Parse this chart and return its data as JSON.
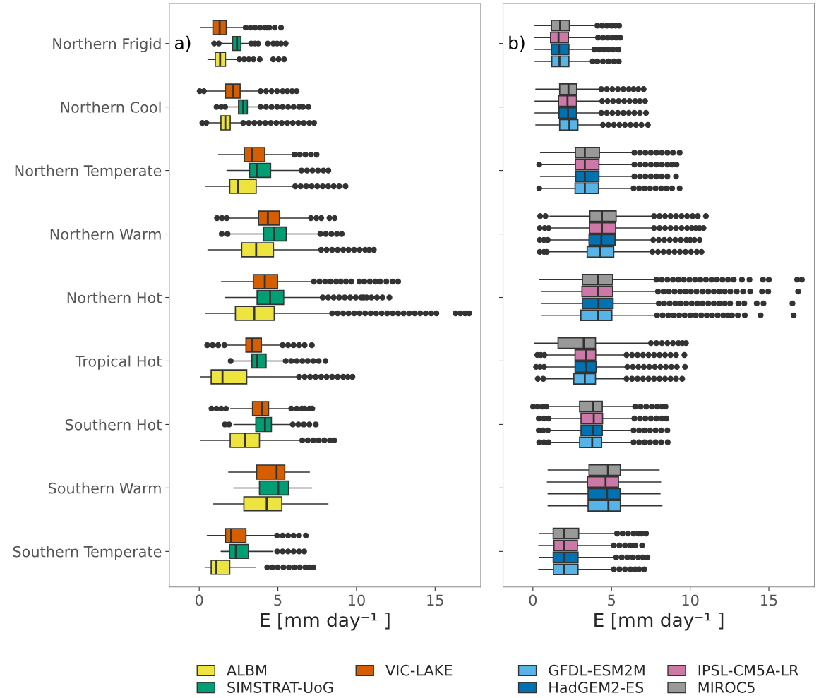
{
  "chart_data": [
    {
      "type": "box",
      "orientation": "horizontal",
      "annotations": [
        "a)"
      ],
      "xlabel": "E [mm day⁻¹ ]",
      "xlim": [
        -1.9,
        17.9
      ],
      "xticks": [
        0,
        5,
        10,
        15
      ],
      "legend": "bottom",
      "categories": [
        "Northern Frigid",
        "Northern Cool",
        "Northern Temperate",
        "Northern Warm",
        "Northern Hot",
        "Tropical Hot",
        "Southern Hot",
        "Southern Warm",
        "Southern Temperate"
      ],
      "series": [
        {
          "name": "ALBM",
          "color": "#ede440",
          "boxes": [
            {
              "low": 0.55,
              "q1": 1.02,
              "median": 1.33,
              "q3": 1.67,
              "high": 2.52,
              "outliers": [
                2.55,
                2.85,
                3.15,
                3.45,
                3.85,
                4.7,
                5.05,
                5.4
              ]
            },
            {
              "low": 0.6,
              "q1": 1.38,
              "median": 1.66,
              "q3": 1.97,
              "high": 2.75,
              "outliers": [
                0.2,
                0.45,
                2.8,
                3.15,
                3.5,
                3.85,
                4.2,
                4.55,
                4.9,
                5.25,
                5.6,
                5.95,
                6.3,
                6.65,
                7.0,
                7.3
              ]
            },
            {
              "low": 0.4,
              "q1": 1.94,
              "median": 2.47,
              "q3": 3.62,
              "high": 6.07,
              "outliers": [
                6.1,
                6.45,
                6.8,
                7.15,
                7.5,
                7.85,
                8.2,
                8.55,
                8.9,
                9.3
              ]
            },
            {
              "low": 0.55,
              "q1": 2.7,
              "median": 3.62,
              "q3": 4.72,
              "high": 7.73,
              "outliers": [
                7.75,
                8.1,
                8.45,
                8.8,
                9.15,
                9.5,
                9.85,
                10.2,
                10.55,
                10.8,
                11.1
              ]
            },
            {
              "low": 0.39,
              "q1": 2.3,
              "median": 3.5,
              "q3": 4.77,
              "high": 8.43,
              "outliers": [
                8.45,
                8.8,
                9.15,
                9.5,
                9.85,
                10.2,
                10.55,
                10.9,
                11.25,
                11.6,
                11.95,
                12.3,
                12.65,
                13.0,
                13.35,
                13.7,
                14.05,
                14.4,
                14.75,
                15.08,
                16.3,
                16.6,
                16.9,
                17.17
              ]
            },
            {
              "low": 0.09,
              "q1": 0.76,
              "median": 1.48,
              "q3": 3.02,
              "high": 6.31,
              "outliers": [
                6.35,
                6.7,
                7.05,
                7.4,
                7.75,
                8.1,
                8.45,
                8.8,
                9.15,
                9.45,
                9.74
              ]
            },
            {
              "low": 0.1,
              "q1": 1.97,
              "median": 2.9,
              "q3": 3.83,
              "high": 6.53,
              "outliers": [
                6.55,
                6.9,
                7.25,
                7.6,
                7.95,
                8.3,
                8.58
              ]
            },
            {
              "low": 0.9,
              "q1": 2.84,
              "median": 4.29,
              "q3": 5.25,
              "high": 8.19
            },
            {
              "low": 0.36,
              "q1": 0.76,
              "median": 1.06,
              "q3": 1.94,
              "high": 3.6,
              "outliers": [
                4.32,
                4.65,
                5.0,
                5.35,
                5.7,
                6.05,
                6.4,
                6.75,
                7.0,
                7.26
              ]
            }
          ]
        },
        {
          "name": "SIMSTRAT-UoG",
          "color": "#009e73",
          "boxes": [
            {
              "low": 1.48,
              "q1": 2.12,
              "median": 2.4,
              "q3": 2.65,
              "high": 3.27,
              "outliers": [
                0.95,
                1.25,
                3.3,
                3.55,
                3.75,
                4.36,
                4.7,
                4.95,
                5.2,
                5.5
              ]
            },
            {
              "low": 1.75,
              "q1": 2.5,
              "median": 2.8,
              "q3": 3.06,
              "high": 3.85,
              "outliers": [
                1.1,
                1.4,
                1.65,
                3.9,
                4.25,
                4.6,
                4.95,
                5.3,
                5.65,
                6.0,
                6.35,
                6.6,
                6.94
              ]
            },
            {
              "low": 1.76,
              "q1": 3.2,
              "median": 3.65,
              "q3": 4.54,
              "high": 6.49,
              "outliers": [
                6.5,
                6.85,
                7.2,
                7.55,
                7.9,
                8.21
              ]
            },
            {
              "low": 1.9,
              "q1": 4.09,
              "median": 4.74,
              "q3": 5.53,
              "high": 7.68,
              "outliers": [
                1.43,
                1.8,
                7.7,
                8.05,
                8.4,
                8.75,
                9.06
              ]
            },
            {
              "low": 1.66,
              "q1": 3.68,
              "median": 4.5,
              "q3": 5.37,
              "high": 7.83,
              "outliers": [
                7.85,
                8.2,
                8.55,
                8.9,
                9.25,
                9.6,
                9.95,
                10.3,
                10.45,
                10.64,
                10.95,
                11.3,
                11.65,
                12.09
              ]
            },
            {
              "low": 2.15,
              "q1": 3.35,
              "median": 3.69,
              "q3": 4.25,
              "high": 5.44,
              "outliers": [
                2.0,
                5.5,
                5.85,
                6.2,
                6.55,
                6.9,
                7.25,
                7.6,
                8.03
              ]
            },
            {
              "low": 2.2,
              "q1": 3.6,
              "median": 4.18,
              "q3": 4.59,
              "high": 5.93,
              "outliers": [
                1.63,
                1.9,
                5.95,
                6.3,
                6.65,
                7.0,
                7.41
              ]
            },
            {
              "low": 2.18,
              "q1": 3.83,
              "median": 5.02,
              "q3": 5.68,
              "high": 7.17
            },
            {
              "low": 1.39,
              "q1": 1.93,
              "median": 2.33,
              "q3": 3.13,
              "high": 4.69,
              "outliers": [
                4.96,
                5.3,
                5.65,
                6.0,
                6.35,
                6.67
              ]
            }
          ]
        },
        {
          "name": "VIC-LAKE",
          "color": "#d55e00",
          "boxes": [
            {
              "low": 0.09,
              "q1": 0.87,
              "median": 1.3,
              "q3": 1.72,
              "high": 2.9,
              "outliers": [
                2.95,
                3.25,
                3.55,
                3.85,
                4.15,
                4.3,
                4.45,
                4.8,
                5.2
              ]
            },
            {
              "low": 0.4,
              "q1": 1.67,
              "median": 2.17,
              "q3": 2.6,
              "high": 3.87,
              "outliers": [
                0.03,
                0.3,
                3.9,
                4.25,
                4.6,
                4.95,
                5.3,
                5.6,
                5.9,
                6.19
              ]
            },
            {
              "low": 1.23,
              "q1": 2.87,
              "median": 3.35,
              "q3": 4.17,
              "high": 6.0,
              "outliers": [
                6.05,
                6.4,
                6.75,
                7.1,
                7.46
              ]
            },
            {
              "low": 1.85,
              "q1": 3.77,
              "median": 4.36,
              "q3": 5.1,
              "high": 7.04,
              "outliers": [
                1.13,
                1.45,
                1.75,
                7.1,
                7.45,
                7.76,
                8.28,
                8.61
              ]
            },
            {
              "low": 1.41,
              "q1": 3.44,
              "median": 4.17,
              "q3": 4.98,
              "high": 7.26,
              "outliers": [
                7.3,
                7.65,
                8.0,
                8.35,
                8.7,
                9.0,
                9.33,
                9.67,
                10.19,
                10.5,
                10.85,
                11.2,
                11.5,
                11.9,
                12.3,
                12.65
              ]
            },
            {
              "low": 1.65,
              "q1": 2.97,
              "median": 3.35,
              "q3": 3.95,
              "high": 5.29,
              "outliers": [
                0.51,
                0.85,
                1.2,
                1.6,
                5.3,
                5.65,
                6.0,
                6.35,
                6.7,
                7.16
              ]
            },
            {
              "low": 2.0,
              "q1": 3.39,
              "median": 3.98,
              "q3": 4.41,
              "high": 5.84,
              "outliers": [
                0.78,
                1.1,
                1.4,
                1.7,
                5.85,
                6.2,
                6.52,
                6.71,
                7.0,
                7.19
              ]
            },
            {
              "low": 1.87,
              "q1": 3.65,
              "median": 4.92,
              "q3": 5.44,
              "high": 7.01
            },
            {
              "low": 0.51,
              "q1": 1.67,
              "median": 2.03,
              "q3": 2.97,
              "high": 4.92,
              "outliers": [
                4.95,
                5.3,
                5.65,
                6.0,
                6.35,
                6.78
              ]
            }
          ]
        }
      ]
    },
    {
      "type": "box",
      "orientation": "horizontal",
      "annotations": [
        "b)"
      ],
      "xlabel": "E [mm day⁻¹ ]",
      "xlim": [
        -1.9,
        17.9
      ],
      "xticks": [
        0,
        5,
        10,
        15
      ],
      "legend": "bottom",
      "tick_labels": "x",
      "series": [
        {
          "name": "GFDL-ESM2M",
          "color": "#56b4e9",
          "boxes": [
            {
              "low": 0.13,
              "q1": 1.2,
              "median": 1.69,
              "q3": 2.29,
              "high": 3.69,
              "outliers": [
                3.8,
                4.1,
                4.45,
                4.8,
                5.15,
                5.46
              ]
            },
            {
              "low": 0.18,
              "q1": 1.7,
              "median": 2.32,
              "q3": 2.86,
              "high": 4.43,
              "outliers": [
                4.45,
                4.8,
                5.15,
                5.5,
                5.85,
                6.2,
                6.55,
                6.9,
                7.31
              ]
            },
            {
              "low": 0.55,
              "q1": 2.68,
              "median": 3.3,
              "q3": 4.17,
              "high": 6.34,
              "outliers": [
                0.4,
                6.4,
                6.75,
                7.1,
                7.45,
                7.8,
                8.15,
                8.5,
                8.85,
                9.33
              ]
            },
            {
              "low": 1.0,
              "q1": 3.45,
              "median": 4.27,
              "q3": 5.14,
              "high": 7.58,
              "outliers": [
                0.43,
                0.7,
                0.88,
                7.6,
                7.95,
                8.3,
                8.65,
                9.0,
                9.35,
                9.7,
                10.05,
                10.42,
                10.72
              ]
            },
            {
              "low": 0.57,
              "q1": 3.05,
              "median": 4.14,
              "q3": 5.02,
              "high": 7.87,
              "outliers": [
                7.9,
                8.25,
                8.6,
                8.95,
                9.3,
                9.65,
                10.0,
                10.35,
                10.7,
                11.05,
                11.4,
                11.75,
                12.1,
                12.4,
                12.66,
                13.03,
                13.47,
                14.48,
                16.58
              ]
            },
            {
              "low": 0.8,
              "q1": 2.6,
              "median": 3.3,
              "q3": 3.98,
              "high": 5.92,
              "outliers": [
                0.31,
                0.66,
                5.95,
                6.3,
                6.65,
                7.0,
                7.35,
                7.7,
                8.05,
                8.4,
                8.75,
                9.1,
                9.49
              ]
            },
            {
              "low": 1.05,
              "q1": 2.97,
              "median": 3.77,
              "q3": 4.37,
              "high": 6.37,
              "outliers": [
                0.4,
                0.7,
                0.99,
                6.4,
                6.75,
                7.1,
                7.45,
                7.8,
                8.15,
                8.57
              ]
            },
            {
              "low": 0.96,
              "q1": 3.51,
              "median": 4.8,
              "q3": 5.56,
              "high": 8.21
            },
            {
              "low": 0.36,
              "q1": 1.3,
              "median": 2.0,
              "q3": 2.87,
              "high": 5.14,
              "outliers": [
                5.15,
                5.5,
                5.85,
                6.2,
                6.5,
                6.75,
                7.08
              ]
            }
          ]
        },
        {
          "name": "HadGEM2-ES",
          "color": "#0072b2",
          "boxes": [
            {
              "low": 0.13,
              "q1": 1.18,
              "median": 1.66,
              "q3": 2.29,
              "high": 3.87,
              "outliers": [
                3.9,
                4.2,
                4.5,
                4.8,
                5.1,
                5.44
              ]
            },
            {
              "low": 0.13,
              "q1": 1.66,
              "median": 2.23,
              "q3": 2.77,
              "high": 4.32,
              "outliers": [
                4.35,
                4.7,
                5.05,
                5.4,
                5.75,
                6.1,
                6.45,
                6.8,
                7.19
              ]
            },
            {
              "low": 0.48,
              "q1": 2.72,
              "median": 3.3,
              "q3": 4.2,
              "high": 6.41,
              "outliers": [
                6.45,
                6.8,
                7.15,
                7.5,
                7.85,
                8.2,
                8.55,
                9.1
              ]
            },
            {
              "low": 1.18,
              "q1": 3.57,
              "median": 4.35,
              "q3": 5.22,
              "high": 7.61,
              "outliers": [
                0.43,
                0.7,
                0.95,
                7.65,
                8.0,
                8.35,
                8.7,
                9.05,
                9.4,
                9.75,
                10.0,
                10.27,
                10.6
              ]
            },
            {
              "low": 0.57,
              "q1": 3.14,
              "median": 4.17,
              "q3": 5.1,
              "high": 7.98,
              "outliers": [
                8.0,
                8.35,
                8.7,
                9.05,
                9.4,
                9.75,
                10.1,
                10.45,
                10.8,
                11.15,
                11.5,
                11.85,
                12.2,
                12.54,
                13.06,
                13.44,
                14.23,
                14.66,
                16.5
              ]
            },
            {
              "low": 0.8,
              "q1": 2.68,
              "median": 3.39,
              "q3": 4.02,
              "high": 5.96,
              "outliers": [
                0.2,
                0.45,
                0.71,
                6.0,
                6.35,
                6.7,
                7.05,
                7.4,
                7.75,
                8.1,
                8.45,
                8.8,
                9.15,
                9.67
              ]
            },
            {
              "low": 1.1,
              "q1": 3.06,
              "median": 3.81,
              "q3": 4.41,
              "high": 6.37,
              "outliers": [
                0.37,
                0.65,
                0.95,
                6.4,
                6.75,
                7.1,
                7.45,
                7.8,
                8.15,
                8.55
              ]
            },
            {
              "low": 0.96,
              "q1": 3.51,
              "median": 4.71,
              "q3": 5.55,
              "high": 8.09
            },
            {
              "low": 0.4,
              "q1": 1.29,
              "median": 2.0,
              "q3": 2.87,
              "high": 5.25,
              "outliers": [
                5.3,
                5.65,
                6.0,
                6.35,
                6.7,
                7.0,
                7.28
              ]
            }
          ]
        },
        {
          "name": "IPSL-CM5A-LR",
          "color": "#cc79a7",
          "boxes": [
            {
              "low": 0.13,
              "q1": 1.12,
              "median": 1.63,
              "q3": 2.26,
              "high": 3.95,
              "outliers": [
                4.14,
                4.45,
                4.75,
                5.05,
                5.3,
                5.55
              ]
            },
            {
              "low": 0.13,
              "q1": 1.63,
              "median": 2.2,
              "q3": 2.77,
              "high": 4.36,
              "outliers": [
                4.4,
                4.75,
                5.1,
                5.45,
                5.8,
                6.15,
                6.5,
                6.8,
                7.13
              ]
            },
            {
              "low": 0.55,
              "q1": 2.7,
              "median": 3.3,
              "q3": 4.2,
              "high": 6.41,
              "outliers": [
                0.4,
                6.45,
                6.8,
                7.15,
                7.5,
                7.85,
                8.2,
                8.55,
                8.85,
                9.13
              ]
            },
            {
              "low": 1.2,
              "q1": 3.6,
              "median": 4.39,
              "q3": 5.26,
              "high": 7.64,
              "outliers": [
                0.43,
                0.75,
                1.0,
                7.7,
                8.05,
                8.4,
                8.75,
                9.1,
                9.45,
                9.8,
                10.1,
                10.35,
                10.6,
                10.85
              ]
            },
            {
              "low": 0.57,
              "q1": 3.12,
              "median": 4.14,
              "q3": 5.07,
              "high": 7.9,
              "outliers": [
                7.95,
                8.3,
                8.65,
                9.0,
                9.35,
                9.7,
                10.05,
                10.4,
                10.8,
                11.15,
                11.5,
                11.85,
                12.2,
                12.55,
                12.96,
                13.36,
                13.81,
                14.56,
                14.96,
                16.86
              ]
            },
            {
              "low": 0.8,
              "q1": 2.68,
              "median": 3.39,
              "q3": 3.99,
              "high": 5.92,
              "outliers": [
                0.28,
                0.5,
                0.73,
                5.95,
                6.3,
                6.65,
                7.0,
                7.35,
                7.7,
                8.05,
                8.4,
                8.75,
                9.1,
                9.63
              ]
            },
            {
              "low": 1.15,
              "q1": 3.06,
              "median": 3.87,
              "q3": 4.43,
              "high": 6.41,
              "outliers": [
                0.37,
                0.7,
                1.0,
                6.45,
                6.8,
                7.15,
                7.5,
                7.85,
                8.2,
                8.48
              ]
            },
            {
              "low": 0.91,
              "q1": 3.47,
              "median": 4.62,
              "q3": 5.44,
              "high": 8.13
            },
            {
              "low": 0.36,
              "q1": 1.34,
              "median": 1.97,
              "q3": 2.83,
              "high": 5.11,
              "outliers": [
                5.15,
                5.5,
                5.85,
                6.2,
                6.5,
                6.94
              ]
            }
          ]
        },
        {
          "name": "MIROC5",
          "color": "#999999",
          "boxes": [
            {
              "low": 0.13,
              "q1": 1.18,
              "median": 1.73,
              "q3": 2.32,
              "high": 3.87,
              "outliers": [
                4.1,
                4.4,
                4.7,
                5.0,
                5.25,
                5.48
              ]
            },
            {
              "low": 0.18,
              "q1": 1.7,
              "median": 2.26,
              "q3": 2.78,
              "high": 4.32,
              "outliers": [
                4.35,
                4.7,
                5.05,
                5.4,
                5.75,
                6.1,
                6.4,
                6.7,
                7.04
              ]
            },
            {
              "low": 0.48,
              "q1": 2.7,
              "median": 3.3,
              "q3": 4.23,
              "high": 6.41,
              "outliers": [
                6.45,
                6.8,
                7.15,
                7.5,
                7.85,
                8.2,
                8.55,
                8.9,
                9.33
              ]
            },
            {
              "low": 1.08,
              "q1": 3.62,
              "median": 4.39,
              "q3": 5.29,
              "high": 7.68,
              "outliers": [
                0.46,
                0.8,
                7.7,
                8.05,
                8.4,
                8.75,
                9.1,
                9.45,
                9.8,
                10.15,
                10.48,
                11.0
              ]
            },
            {
              "low": 0.4,
              "q1": 3.15,
              "median": 4.14,
              "q3": 5.07,
              "high": 7.83,
              "outliers": [
                7.85,
                8.2,
                8.55,
                8.9,
                9.25,
                9.6,
                9.95,
                10.3,
                10.65,
                11.0,
                11.35,
                11.7,
                12.05,
                12.4,
                12.77,
                13.29,
                13.77,
                14.63,
                15.0,
                16.8,
                17.1
              ]
            },
            {
              "low": 0.09,
              "q1": 1.6,
              "median": 3.23,
              "q3": 3.98,
              "high": 7.46,
              "outliers": [
                7.5,
                7.85,
                8.2,
                8.55,
                8.9,
                9.25,
                9.5,
                9.73
              ]
            },
            {
              "low": 0.9,
              "q1": 2.97,
              "median": 3.84,
              "q3": 4.41,
              "high": 6.49,
              "outliers": [
                0.01,
                0.3,
                0.6,
                0.85,
                6.5,
                6.85,
                7.2,
                7.55,
                7.9,
                8.2,
                8.43
              ]
            },
            {
              "low": 0.96,
              "q1": 3.57,
              "median": 4.77,
              "q3": 5.56,
              "high": 8.03
            },
            {
              "low": 0.4,
              "q1": 1.29,
              "median": 2.0,
              "q3": 2.91,
              "high": 5.32,
              "outliers": [
                5.35,
                5.7,
                6.05,
                6.4,
                6.7,
                6.9,
                7.19
              ]
            }
          ]
        }
      ]
    }
  ]
}
